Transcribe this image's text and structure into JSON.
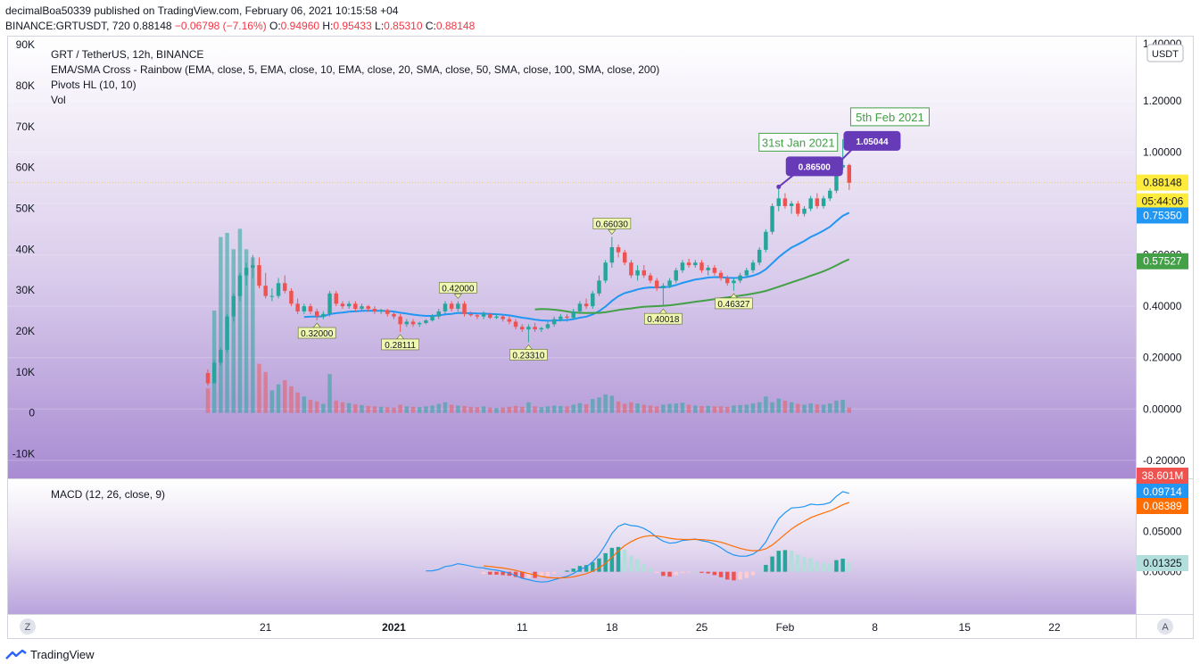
{
  "header": {
    "publish_line": "decimalBoa50339 published on TradingView.com, February 06, 2021 10:15:58 +04",
    "symbol": "BINANCE:GRTUSDT, 720",
    "last": "0.88148",
    "change": "−0.06798 (−7.16%)",
    "o_label": "O:",
    "o": "0.94960",
    "h_label": "H:",
    "h": "0.95433",
    "l_label": "L:",
    "l": "0.85310",
    "c_label": "C:",
    "c": "0.88148"
  },
  "legend": {
    "title": "GRT / TetherUS, 12h, BINANCE",
    "ema": "EMA/SMA Cross - Rainbow (EMA, close, 5, EMA, close, 10, EMA, close, 20, SMA, close, 50, SMA, close, 100, SMA, close, 200)",
    "pivots": "Pivots HL (10, 10)",
    "vol": "Vol"
  },
  "currency": "USDT",
  "macd_label": "MACD (12, 26, close, 9)",
  "scale_buttons": {
    "left": "Z",
    "right": "A"
  },
  "footer_brand": "TradingView",
  "colors": {
    "up": "#26a69a",
    "down": "#ef5350",
    "ema_fast": "#2196f3",
    "ema_slow": "#43a047",
    "macd": "#2196f3",
    "signal": "#ff6d00",
    "pivot_callout": "#673ab7",
    "annotation": "#43a047"
  },
  "chart_data": {
    "type": "candlestick",
    "title": "GRT / TetherUS, 12h, BINANCE",
    "price_axis": {
      "range": [
        -0.27,
        1.45
      ],
      "ticks": [
        "1.20000",
        "1.00000",
        "0.80000",
        "0.60000",
        "0.40000",
        "0.20000",
        "0.00000",
        "-0.20000"
      ],
      "visible_top": "1.40000"
    },
    "volume_axis": {
      "range": [
        -16000,
        92000
      ],
      "ticks": [
        "90K",
        "80K",
        "70K",
        "60K",
        "50K",
        "40K",
        "30K",
        "20K",
        "10K",
        "0",
        "-10K"
      ]
    },
    "x_axis": {
      "range": [
        0,
        127
      ],
      "ticks": [
        {
          "i": 37,
          "label": "21"
        },
        {
          "i": 57,
          "label": "2021"
        },
        {
          "i": 77,
          "label": "11"
        },
        {
          "i": 91,
          "label": "18"
        },
        {
          "i": 105,
          "label": "25"
        },
        {
          "i": 118,
          "label": "Feb"
        },
        {
          "i": 132,
          "label": "8"
        },
        {
          "i": 146,
          "label": "15"
        },
        {
          "i": 160,
          "label": "22"
        }
      ]
    },
    "price_labels": [
      {
        "value": "0.88148",
        "color": "#ffeb3b",
        "text_color": "#131722"
      },
      {
        "value": "05:44:06",
        "color": "#ffeb3b",
        "text_color": "#131722"
      },
      {
        "value": "0.75350",
        "color": "#2196f3",
        "text_color": "#ffffff"
      },
      {
        "value": "0.57527",
        "color": "#43a047",
        "text_color": "#ffffff"
      },
      {
        "value": "38.601M",
        "color": "#ef5350",
        "text_color": "#ffffff"
      }
    ],
    "candles": [
      [
        0.0,
        0.0,
        0.0,
        0.0
      ],
      [
        0.0,
        0.0,
        0.0,
        0.0
      ],
      [
        0.0,
        0.0,
        0.0,
        0.0
      ],
      [
        0.0,
        0.0,
        0.0,
        0.0
      ],
      [
        0.0,
        0.0,
        0.0,
        0.0
      ],
      [
        0.0,
        0.0,
        0.0,
        0.0
      ],
      [
        0.0,
        0.0,
        0.0,
        0.0
      ],
      [
        0.0,
        0.0,
        0.0,
        0.0
      ],
      [
        0.0,
        0.0,
        0.0,
        0.0
      ],
      [
        0.0,
        0.0,
        0.0,
        0.0
      ],
      [
        0.0,
        0.0,
        0.0,
        0.0
      ],
      [
        0.0,
        0.0,
        0.0,
        0.0
      ],
      [
        0.0,
        0.0,
        0.0,
        0.0
      ],
      [
        0.0,
        0.0,
        0.0,
        0.0
      ],
      [
        0.0,
        0.0,
        0.0,
        0.0
      ],
      [
        0.0,
        0.0,
        0.0,
        0.0
      ],
      [
        0.0,
        0.0,
        0.0,
        0.0
      ],
      [
        0.0,
        0.0,
        0.0,
        0.0
      ],
      [
        0.0,
        0.0,
        0.0,
        0.0
      ],
      [
        0.0,
        0.0,
        0.0,
        0.0
      ],
      [
        0.0,
        0.0,
        0.0,
        0.0
      ],
      [
        0.0,
        0.0,
        0.0,
        0.0
      ],
      [
        0.0,
        0.0,
        0.0,
        0.0
      ],
      [
        0.0,
        0.0,
        0.0,
        0.0
      ],
      [
        0.0,
        0.0,
        0.0,
        0.0
      ],
      [
        0.0,
        0.0,
        0.0,
        0.0
      ],
      [
        0.0,
        0.0,
        0.0,
        0.0
      ],
      [
        0.0,
        0.0,
        0.0,
        0.0
      ],
      [
        0.14,
        0.155,
        0.09,
        0.1
      ],
      [
        0.1,
        0.19,
        0.1,
        0.18
      ],
      [
        0.18,
        0.24,
        0.17,
        0.23
      ],
      [
        0.23,
        0.37,
        0.22,
        0.36
      ],
      [
        0.36,
        0.45,
        0.34,
        0.44
      ],
      [
        0.44,
        0.53,
        0.42,
        0.52
      ],
      [
        0.52,
        0.57,
        0.48,
        0.55
      ],
      [
        0.55,
        0.6,
        0.51,
        0.56
      ],
      [
        0.56,
        0.59,
        0.47,
        0.48
      ],
      [
        0.48,
        0.53,
        0.43,
        0.44
      ],
      [
        0.44,
        0.47,
        0.42,
        0.44
      ],
      [
        0.44,
        0.51,
        0.43,
        0.49
      ],
      [
        0.49,
        0.52,
        0.45,
        0.46
      ],
      [
        0.46,
        0.47,
        0.4,
        0.41
      ],
      [
        0.41,
        0.43,
        0.37,
        0.38
      ],
      [
        0.38,
        0.41,
        0.37,
        0.4
      ],
      [
        0.4,
        0.41,
        0.37,
        0.38
      ],
      [
        0.38,
        0.39,
        0.345,
        0.36
      ],
      [
        0.36,
        0.38,
        0.35,
        0.37
      ],
      [
        0.37,
        0.46,
        0.36,
        0.45
      ],
      [
        0.45,
        0.46,
        0.4,
        0.41
      ],
      [
        0.41,
        0.42,
        0.39,
        0.4
      ],
      [
        0.4,
        0.42,
        0.39,
        0.41
      ],
      [
        0.41,
        0.42,
        0.38,
        0.39
      ],
      [
        0.39,
        0.41,
        0.38,
        0.4
      ],
      [
        0.4,
        0.405,
        0.38,
        0.39
      ],
      [
        0.39,
        0.4,
        0.37,
        0.38
      ],
      [
        0.38,
        0.39,
        0.37,
        0.385
      ],
      [
        0.385,
        0.39,
        0.36,
        0.37
      ],
      [
        0.37,
        0.38,
        0.35,
        0.36
      ],
      [
        0.36,
        0.37,
        0.3,
        0.33
      ],
      [
        0.33,
        0.35,
        0.32,
        0.34
      ],
      [
        0.34,
        0.35,
        0.32,
        0.33
      ],
      [
        0.33,
        0.34,
        0.32,
        0.335
      ],
      [
        0.335,
        0.35,
        0.33,
        0.345
      ],
      [
        0.345,
        0.37,
        0.34,
        0.36
      ],
      [
        0.36,
        0.39,
        0.35,
        0.38
      ],
      [
        0.38,
        0.42,
        0.37,
        0.41
      ],
      [
        0.41,
        0.42,
        0.38,
        0.39
      ],
      [
        0.39,
        0.42,
        0.38,
        0.41
      ],
      [
        0.41,
        0.42,
        0.36,
        0.37
      ],
      [
        0.37,
        0.38,
        0.36,
        0.365
      ],
      [
        0.365,
        0.37,
        0.35,
        0.36
      ],
      [
        0.36,
        0.38,
        0.35,
        0.37
      ],
      [
        0.37,
        0.375,
        0.35,
        0.355
      ],
      [
        0.355,
        0.37,
        0.35,
        0.36
      ],
      [
        0.36,
        0.37,
        0.34,
        0.35
      ],
      [
        0.35,
        0.36,
        0.33,
        0.34
      ],
      [
        0.34,
        0.35,
        0.31,
        0.32
      ],
      [
        0.32,
        0.33,
        0.3,
        0.31
      ],
      [
        0.31,
        0.33,
        0.26,
        0.32
      ],
      [
        0.32,
        0.335,
        0.3,
        0.31
      ],
      [
        0.31,
        0.32,
        0.3,
        0.315
      ],
      [
        0.315,
        0.34,
        0.31,
        0.33
      ],
      [
        0.33,
        0.36,
        0.32,
        0.35
      ],
      [
        0.35,
        0.37,
        0.34,
        0.36
      ],
      [
        0.36,
        0.37,
        0.34,
        0.355
      ],
      [
        0.355,
        0.39,
        0.35,
        0.38
      ],
      [
        0.38,
        0.42,
        0.37,
        0.41
      ],
      [
        0.41,
        0.43,
        0.39,
        0.4
      ],
      [
        0.4,
        0.46,
        0.39,
        0.45
      ],
      [
        0.45,
        0.52,
        0.44,
        0.5
      ],
      [
        0.5,
        0.58,
        0.49,
        0.57
      ],
      [
        0.57,
        0.67,
        0.55,
        0.63
      ],
      [
        0.63,
        0.64,
        0.59,
        0.61
      ],
      [
        0.61,
        0.62,
        0.56,
        0.57
      ],
      [
        0.57,
        0.58,
        0.51,
        0.52
      ],
      [
        0.52,
        0.56,
        0.5,
        0.54
      ],
      [
        0.54,
        0.56,
        0.51,
        0.52
      ],
      [
        0.52,
        0.53,
        0.49,
        0.5
      ],
      [
        0.5,
        0.51,
        0.46,
        0.47
      ],
      [
        0.47,
        0.49,
        0.4,
        0.48
      ],
      [
        0.48,
        0.51,
        0.47,
        0.5
      ],
      [
        0.5,
        0.55,
        0.49,
        0.54
      ],
      [
        0.54,
        0.58,
        0.53,
        0.57
      ],
      [
        0.57,
        0.585,
        0.55,
        0.56
      ],
      [
        0.56,
        0.58,
        0.55,
        0.57
      ],
      [
        0.57,
        0.58,
        0.53,
        0.54
      ],
      [
        0.54,
        0.56,
        0.52,
        0.55
      ],
      [
        0.55,
        0.56,
        0.52,
        0.53
      ],
      [
        0.53,
        0.54,
        0.5,
        0.51
      ],
      [
        0.51,
        0.52,
        0.48,
        0.49
      ],
      [
        0.49,
        0.51,
        0.46,
        0.5
      ],
      [
        0.5,
        0.53,
        0.49,
        0.52
      ],
      [
        0.52,
        0.55,
        0.51,
        0.54
      ],
      [
        0.54,
        0.58,
        0.53,
        0.57
      ],
      [
        0.57,
        0.63,
        0.56,
        0.62
      ],
      [
        0.62,
        0.7,
        0.61,
        0.69
      ],
      [
        0.69,
        0.8,
        0.68,
        0.79
      ],
      [
        0.79,
        0.865,
        0.77,
        0.82
      ],
      [
        0.82,
        0.84,
        0.78,
        0.79
      ],
      [
        0.79,
        0.81,
        0.76,
        0.8
      ],
      [
        0.8,
        0.81,
        0.75,
        0.76
      ],
      [
        0.76,
        0.79,
        0.75,
        0.78
      ],
      [
        0.78,
        0.83,
        0.77,
        0.82
      ],
      [
        0.82,
        0.84,
        0.78,
        0.79
      ],
      [
        0.79,
        0.83,
        0.78,
        0.82
      ],
      [
        0.82,
        0.86,
        0.81,
        0.85
      ],
      [
        0.85,
        0.95,
        0.84,
        0.94
      ],
      [
        0.94,
        1.05,
        0.93,
        0.95
      ],
      [
        0.95,
        0.955,
        0.853,
        0.881
      ]
    ],
    "volume": [
      0,
      0,
      0,
      0,
      0,
      0,
      0,
      0,
      0,
      0,
      0,
      0,
      0,
      0,
      0,
      0,
      0,
      0,
      0,
      0,
      0,
      0,
      0,
      0,
      0,
      0,
      0,
      0,
      6000,
      25000,
      43000,
      44000,
      40000,
      45000,
      40000,
      38000,
      12000,
      10000,
      5500,
      7000,
      8000,
      6500,
      5000,
      4000,
      3200,
      2800,
      2200,
      9500,
      3000,
      2600,
      2400,
      2100,
      1900,
      1700,
      1600,
      1500,
      1400,
      1300,
      2000,
      1600,
      1500,
      1400,
      1600,
      1800,
      2200,
      2600,
      2000,
      1800,
      1700,
      1500,
      1400,
      1600,
      1300,
      1200,
      1300,
      1500,
      1700,
      1500,
      2600,
      1600,
      1400,
      1600,
      1800,
      1700,
      1600,
      2000,
      2400,
      2100,
      3400,
      3800,
      4500,
      4200,
      2800,
      2200,
      2600,
      2300,
      2000,
      1800,
      1600,
      2000,
      2200,
      2300,
      2500,
      2000,
      1800,
      1700,
      1700,
      1600,
      1600,
      1500,
      1800,
      1900,
      2000,
      2300,
      2600,
      4000,
      2600,
      3500,
      3000,
      2600,
      2200,
      2000,
      2300,
      2100,
      2000,
      2300,
      3000,
      3200,
      1300
    ],
    "ema20_start": 43,
    "sma50_start": 79,
    "pivots": [
      {
        "i": 45,
        "value": "0.32000",
        "type": "low"
      },
      {
        "i": 58,
        "value": "0.28111",
        "type": "low"
      },
      {
        "i": 67,
        "value": "0.42000",
        "type": "high"
      },
      {
        "i": 78,
        "value": "0.23310",
        "type": "low"
      },
      {
        "i": 91,
        "value": "0.66030",
        "type": "high"
      },
      {
        "i": 99,
        "value": "0.40018",
        "type": "low"
      },
      {
        "i": 110,
        "value": "0.46327",
        "type": "low"
      }
    ],
    "callouts": [
      {
        "i": 117,
        "value": "0.86500",
        "date": "31st Jan 2021"
      },
      {
        "i": 126,
        "value": "1.05044",
        "date": "5th Feb 2021"
      }
    ],
    "macd": {
      "range": [
        -0.05,
        0.11
      ],
      "ticks": [
        "0.05000",
        "0.00000"
      ],
      "labels": [
        {
          "value": "0.09714",
          "color": "#2196f3"
        },
        {
          "value": "0.08389",
          "color": "#ff6d00"
        },
        {
          "value": "0.01325",
          "color": "#b2dfdb"
        }
      ]
    }
  }
}
